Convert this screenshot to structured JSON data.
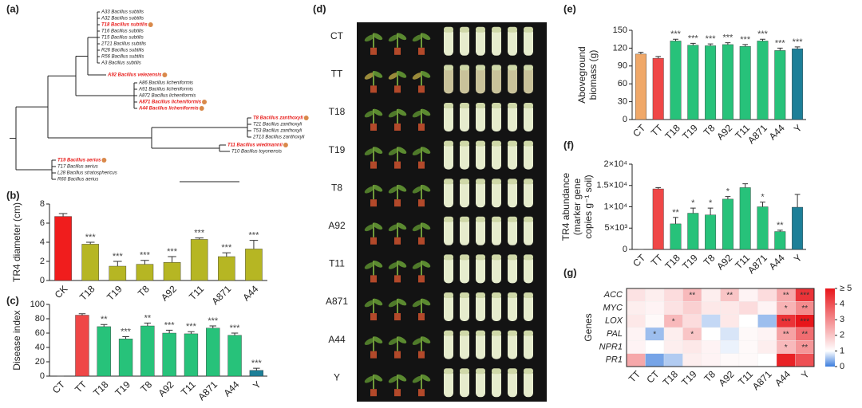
{
  "chart_data": [
    {
      "type": "tree",
      "panel_label": "(a)",
      "leaves": [
        {
          "label": "A33 Bacillus subtilis",
          "highlight": false
        },
        {
          "label": "A32 Bacillus subtilis",
          "highlight": false
        },
        {
          "label": "T18 Bacillus subtilis",
          "highlight": true
        },
        {
          "label": "T16 Bacillus subtilis",
          "highlight": false
        },
        {
          "label": "T15 Bacillus subtilis",
          "highlight": false
        },
        {
          "label": "2T21 Bacillus subtilis",
          "highlight": false
        },
        {
          "label": "R26 Bacillus subtilis",
          "highlight": false
        },
        {
          "label": "R56 Bacillus subtilis",
          "highlight": false
        },
        {
          "label": "A3 Bacillus subtilis",
          "highlight": false
        },
        {
          "label": "A92 Bacillus velezensis",
          "highlight": true
        },
        {
          "label": "A86 Bacillus licheniformis",
          "highlight": false
        },
        {
          "label": "A91 Bacillus licheniformis",
          "highlight": false
        },
        {
          "label": "A872 Bacillus licheniformis",
          "highlight": false
        },
        {
          "label": "A871 Bacillus licheniformis",
          "highlight": true
        },
        {
          "label": "A44 Bacillus licheniformis",
          "highlight": true
        },
        {
          "label": "T8 Bacillus zanthoxyli",
          "highlight": true
        },
        {
          "label": "T21 Bacillus zanthoxyli",
          "highlight": false
        },
        {
          "label": "T53 Bacillus zanthoxyli",
          "highlight": false
        },
        {
          "label": "2T13 Bacillus zanthoxyli",
          "highlight": false
        },
        {
          "label": "T11 Bacillus wiedmannii",
          "highlight": true
        },
        {
          "label": "T10 Bacillus toyonensis",
          "highlight": false
        },
        {
          "label": "T19 Bacillus aerius",
          "highlight": true
        },
        {
          "label": "T17 Bacillus aerius",
          "highlight": false
        },
        {
          "label": "L28 Bacillus stratosphericus",
          "highlight": false
        },
        {
          "label": "R60 Bacillus aerius",
          "highlight": false
        }
      ],
      "highlight_color": "#e8201e",
      "marker_color": "#d9894a"
    },
    {
      "type": "bar",
      "panel_label": "(b)",
      "y_label": [
        "TR4 diameter (cm)"
      ],
      "categories": [
        "CK",
        "T18",
        "T19",
        "T8",
        "A92",
        "T11",
        "A871",
        "A44"
      ],
      "values": [
        6.7,
        3.8,
        1.5,
        1.7,
        1.9,
        4.3,
        2.5,
        3.3
      ],
      "errors": [
        0.3,
        0.2,
        0.5,
        0.4,
        0.6,
        0.15,
        0.4,
        0.9
      ],
      "annotations": [
        null,
        "***",
        "***",
        "***",
        "***",
        "***",
        "***",
        "***"
      ],
      "colors": [
        "#f01d1d",
        "#b6b623",
        "#b6b623",
        "#b6b623",
        "#b6b623",
        "#b6b623",
        "#b6b623",
        "#b6b623"
      ],
      "ylim": [
        0,
        8
      ],
      "yticks": [
        0,
        2,
        4,
        6,
        8
      ]
    },
    {
      "type": "bar",
      "panel_label": "(c)",
      "y_label": [
        "Disease index"
      ],
      "categories": [
        "CT",
        "TT",
        "T18",
        "T19",
        "T8",
        "A92",
        "T11",
        "A871",
        "A44",
        "Y"
      ],
      "values": [
        0,
        85,
        69,
        52,
        70,
        60,
        59,
        67,
        57,
        8
      ],
      "errors": [
        0,
        2,
        3,
        3,
        4,
        4,
        3,
        3,
        3,
        3
      ],
      "annotations": [
        null,
        null,
        "**",
        "***",
        "**",
        "***",
        "***",
        "***",
        "***",
        "***"
      ],
      "colors": [
        "#f0a868",
        "#ef4747",
        "#27c27a",
        "#27c27a",
        "#27c27a",
        "#27c27a",
        "#27c27a",
        "#27c27a",
        "#27c27a",
        "#1d7f98"
      ],
      "ylim": [
        0,
        100
      ],
      "yticks": [
        0,
        20,
        40,
        60,
        80,
        100
      ]
    },
    {
      "type": "image",
      "panel_label": "(d)",
      "row_labels": [
        "CT",
        "TT",
        "T18",
        "T19",
        "T8",
        "A92",
        "T11",
        "A871",
        "A44",
        "Y"
      ]
    },
    {
      "type": "bar",
      "panel_label": "(e)",
      "y_label": [
        "Aboveground",
        "biomass (g)"
      ],
      "categories": [
        "CT",
        "TT",
        "T18",
        "T19",
        "T8",
        "A92",
        "T11",
        "A871",
        "A44",
        "Y"
      ],
      "values": [
        110,
        103,
        132,
        125,
        124,
        126,
        123,
        132,
        116,
        119
      ],
      "errors": [
        3,
        3,
        3,
        3,
        3,
        3,
        3,
        3,
        4,
        3
      ],
      "annotations": [
        null,
        null,
        "***",
        "***",
        "***",
        "***",
        "***",
        "***",
        "***",
        "***"
      ],
      "colors": [
        "#f0a868",
        "#ef4747",
        "#27c27a",
        "#27c27a",
        "#27c27a",
        "#27c27a",
        "#27c27a",
        "#27c27a",
        "#27c27a",
        "#1d7f98"
      ],
      "ylim": [
        0,
        150
      ],
      "yticks": [
        0,
        30,
        60,
        90,
        120,
        150
      ]
    },
    {
      "type": "bar",
      "panel_label": "(f)",
      "y_label": [
        "TR4 abundance",
        "(marker gene",
        "copies g⁻¹ soil)"
      ],
      "categories": [
        "CT",
        "TT",
        "T18",
        "T19",
        "T8",
        "A92",
        "T11",
        "A871",
        "A44",
        "Y"
      ],
      "values": [
        0,
        14200,
        6000,
        8500,
        8100,
        11800,
        14500,
        10000,
        4200,
        9900
      ],
      "errors": [
        0,
        300,
        1500,
        1200,
        1600,
        600,
        900,
        1100,
        300,
        3000
      ],
      "annotations": [
        null,
        null,
        "**",
        "*",
        "*",
        "*",
        null,
        "*",
        "**",
        null
      ],
      "colors": [
        "#f0a868",
        "#ef4747",
        "#27c27a",
        "#27c27a",
        "#27c27a",
        "#27c27a",
        "#27c27a",
        "#27c27a",
        "#27c27a",
        "#1d7f98"
      ],
      "ylim": [
        0,
        20000
      ],
      "yticks": [
        0,
        {
          "value": 5000,
          "label": "5×10³"
        },
        {
          "value": 10000,
          "label": "1×10⁴"
        },
        {
          "value": 15000,
          "label": "1.5×10⁴"
        },
        {
          "value": 20000,
          "label": "2×10⁴"
        }
      ]
    },
    {
      "type": "heatmap",
      "panel_label": "(g)",
      "y_label": "Genes",
      "rows": [
        "ACC",
        "MYC",
        "LOX",
        "PAL",
        "NPR1",
        "PR1"
      ],
      "columns": [
        "TT",
        "CT",
        "T18",
        "T19",
        "T8",
        "A92",
        "T11",
        "A871",
        "A44",
        "Y"
      ],
      "values": [
        [
          1.5,
          1.3,
          1.6,
          2.2,
          1.3,
          2.0,
          1.2,
          1.6,
          2.5,
          4.5
        ],
        [
          1.3,
          1.2,
          1.5,
          1.8,
          1.4,
          1.4,
          1.6,
          1.2,
          2.3,
          3.0
        ],
        [
          1.4,
          1.1,
          2.2,
          1.6,
          0.7,
          1.4,
          1.0,
          0.5,
          4.5,
          5
        ],
        [
          1.2,
          0.5,
          1.3,
          2.0,
          1.0,
          0.8,
          1.1,
          1.2,
          2.6,
          3.5
        ],
        [
          1.2,
          1.0,
          1.3,
          1.4,
          1.2,
          0.9,
          1.1,
          1.3,
          2.2,
          2.8
        ],
        [
          2.5,
          0.3,
          0.6,
          1.3,
          1.2,
          1.1,
          1.1,
          1.0,
          4.8,
          4.0
        ]
      ],
      "significance": [
        [
          null,
          null,
          null,
          "**",
          null,
          "**",
          null,
          null,
          "**",
          "***"
        ],
        [
          null,
          null,
          null,
          null,
          null,
          null,
          null,
          null,
          "*",
          "**"
        ],
        [
          null,
          null,
          "*",
          null,
          null,
          null,
          null,
          null,
          "***",
          "***"
        ],
        [
          null,
          "*",
          null,
          "*",
          null,
          null,
          null,
          null,
          "**",
          "**"
        ],
        [
          null,
          null,
          null,
          null,
          null,
          null,
          null,
          null,
          "*",
          "**"
        ],
        [
          null,
          null,
          null,
          null,
          null,
          null,
          null,
          null,
          null,
          null
        ]
      ],
      "colors": [
        "#3b7ddd",
        "#ffffff",
        "#e8161b"
      ],
      "clim": [
        0,
        5
      ],
      "colorbar_ticks": [
        0,
        1,
        2,
        3,
        4,
        {
          "value": 5,
          "label": "≥ 5"
        }
      ]
    }
  ]
}
